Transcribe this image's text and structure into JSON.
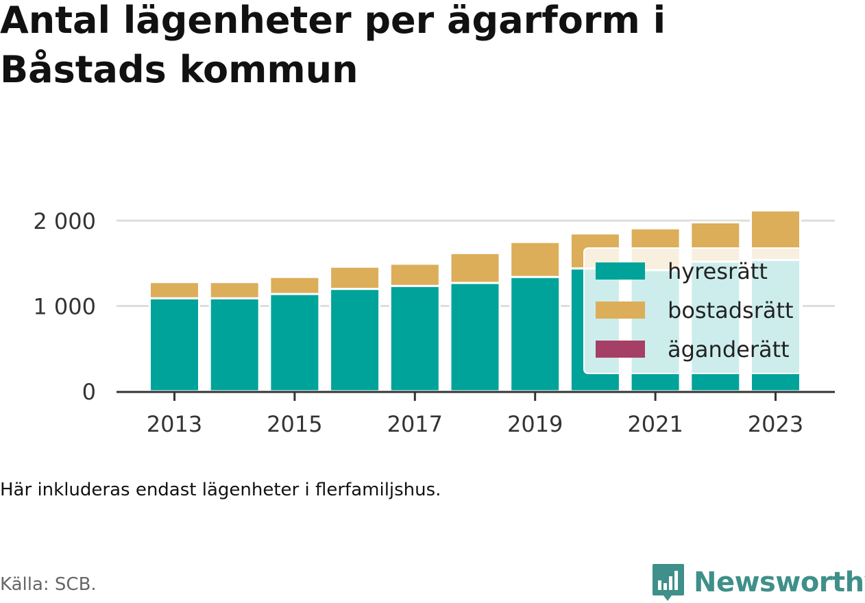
{
  "title": "Antal lägenheter per ägarform i Båstads kommun",
  "note": "Här inkluderas endast lägenheter i flerfamiljshus.",
  "source": "Källa: SCB.",
  "brand": "Newsworthy",
  "colors": {
    "hyresratt": "#00a39a",
    "bostadsratt": "#dcae5a",
    "aganderatt": "#a63f66",
    "brand": "#3f8f8a"
  },
  "chart_data": {
    "type": "bar",
    "stacked": true,
    "categories": [
      "2013",
      "2014",
      "2015",
      "2016",
      "2017",
      "2018",
      "2019",
      "2020",
      "2021",
      "2022",
      "2023"
    ],
    "x_tick_labels": [
      "2013",
      "2015",
      "2017",
      "2019",
      "2021",
      "2023"
    ],
    "series": [
      {
        "name": "hyresrätt",
        "values": [
          1090,
          1090,
          1140,
          1200,
          1235,
          1270,
          1340,
          1440,
          1420,
          1520,
          1540
        ]
      },
      {
        "name": "bostadsrätt",
        "values": [
          190,
          190,
          200,
          260,
          260,
          350,
          410,
          410,
          490,
          460,
          580
        ]
      },
      {
        "name": "äganderätt",
        "values": [
          0,
          0,
          0,
          0,
          0,
          0,
          0,
          0,
          0,
          0,
          0
        ]
      }
    ],
    "ylim": [
      0,
      2250
    ],
    "y_ticks": [
      0,
      1000,
      2000
    ],
    "y_tick_labels": [
      "0",
      "1 000",
      "2 000"
    ],
    "grid": true,
    "legend_position": "right"
  }
}
